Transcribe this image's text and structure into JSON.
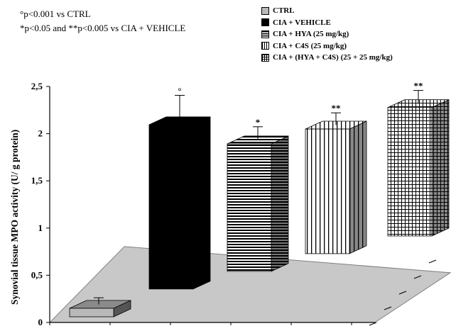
{
  "notes": {
    "line1": "°p<0.001 vs CTRL",
    "line2": "*p<0.05 and **p<0.005 vs CIA + VEHICLE"
  },
  "chart_data": {
    "type": "bar",
    "title": "",
    "xlabel": "",
    "ylabel": "Synovial tissue MPO activity (U/ g protein)",
    "ylim": [
      0,
      2.5
    ],
    "yticks": [
      "0",
      "0,5",
      "1",
      "1,5",
      "2",
      "2,5"
    ],
    "ytick_values": [
      0,
      0.5,
      1,
      1.5,
      2,
      2.5
    ],
    "grid": false,
    "legend_position": "top-right",
    "categories": [
      "CTRL",
      "CIA + VEHICLE",
      "CIA + HYA (25 mg/kg)",
      "CIA + C4S (25 mg/kg)",
      "CIA + (HYA + C4S) (25 + 25 mg/kg)"
    ],
    "values": [
      0.09,
      1.74,
      1.35,
      1.32,
      1.36
    ],
    "errors": [
      0.07,
      0.27,
      0.14,
      0.13,
      0.14
    ],
    "significance": [
      "",
      "°",
      "*",
      "**",
      "**"
    ],
    "patterns": [
      "grey",
      "black",
      "horizontal-lines",
      "vertical-lines",
      "grid"
    ],
    "colors": {
      "ctrl": "#b9b9b9",
      "vehicle": "#000000",
      "pattern": "#000000",
      "floor": "#c8c8c8"
    }
  }
}
